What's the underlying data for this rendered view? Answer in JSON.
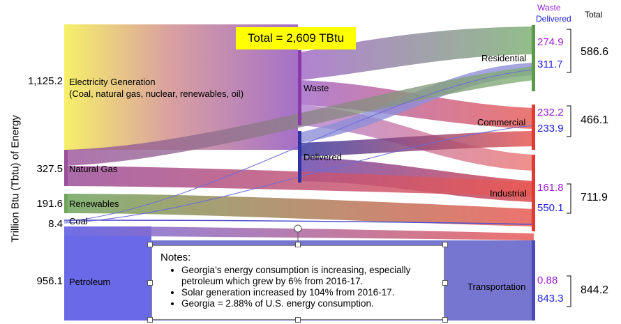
{
  "title": "Total = 2,609 TBtu",
  "y_axis_label": "Trillion Btu (Tbtu) of Energy",
  "sources": [
    {
      "key": "electricity",
      "value": "1,125.2",
      "label_line1": "Electricity Generation",
      "label_line2": "(Coal, natural gas, nuclear, renewables, oil)",
      "color": "#f4ee6a"
    },
    {
      "key": "natural_gas",
      "value": "327.5",
      "label": "Natural Gas",
      "color": "#9a4f9a"
    },
    {
      "key": "renewables",
      "value": "191.6",
      "label": "Renewables",
      "color": "#6fa65e"
    },
    {
      "key": "coal",
      "value": "8.4",
      "label": "Coal",
      "color": "#5050d0"
    },
    {
      "key": "petroleum",
      "value": "956.1",
      "label": "Petroleum",
      "color": "#6464e6"
    }
  ],
  "middle_nodes": {
    "waste": "Waste",
    "delivered": "Delivered"
  },
  "sectors": [
    {
      "key": "residential",
      "label": "Residential",
      "waste": "274.9",
      "delivered": "311.7",
      "total": "586.6",
      "color": "#6aa45a"
    },
    {
      "key": "commercial",
      "label": "Commercial",
      "waste": "232.2",
      "delivered": "233.9",
      "total": "466.1",
      "color": "#e8413a"
    },
    {
      "key": "industrial",
      "label": "Industrial",
      "waste": "161.8",
      "delivered": "550.1",
      "total": "711.9",
      "color": "#e8413a"
    },
    {
      "key": "transportation",
      "label": "Transportation",
      "waste": "0.88",
      "delivered": "843.3",
      "total": "844.2",
      "color": "#5a5ac0"
    }
  ],
  "legend": {
    "waste": "Waste",
    "delivered": "Delivered",
    "total": "Total"
  },
  "notes": {
    "heading": "Notes:",
    "items": [
      "Georgia’s energy consumption is increasing, especially petroleum which grew by 6% from 2016-17.",
      "Solar generation increased by 104% from 2016-17.",
      "Georgia = 2.88% of U.S. energy consumption."
    ]
  },
  "colors": {
    "waste_text": "#9b1fd6",
    "delivered_text": "#2020e0",
    "title_bg": "#ffff00"
  }
}
